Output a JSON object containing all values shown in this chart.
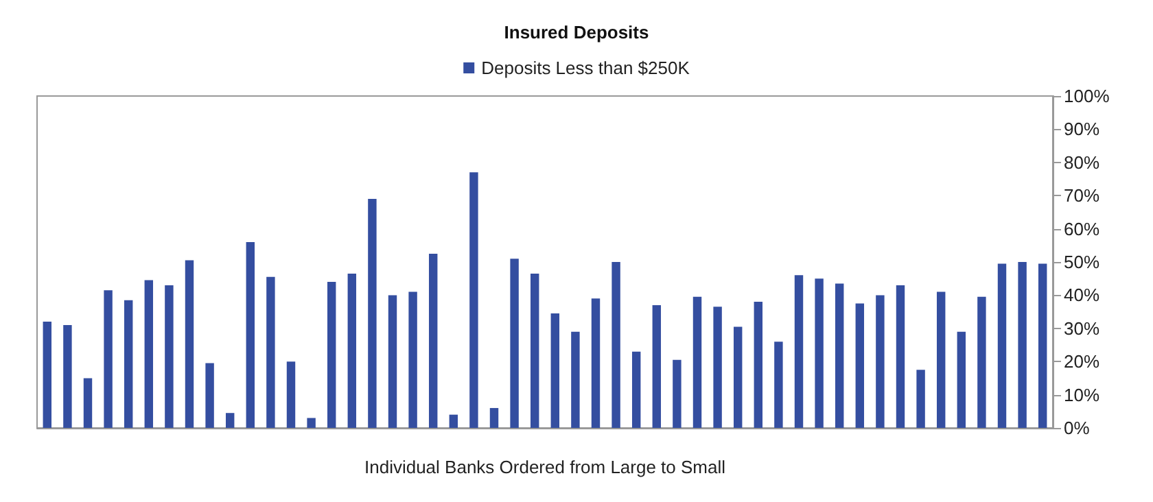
{
  "chart_data": {
    "type": "bar",
    "title": "Insured Deposits",
    "xlabel": "Individual Banks Ordered from Large to Small",
    "categories": [
      null,
      null,
      null,
      null,
      null,
      null,
      null,
      null,
      null,
      null,
      null,
      null,
      null,
      null,
      null,
      null,
      null,
      null,
      null,
      null,
      null,
      null,
      null,
      null,
      null,
      null,
      null,
      null,
      null,
      null,
      null,
      null,
      null,
      null,
      null,
      null,
      null,
      null,
      null,
      null,
      null,
      null,
      null,
      null,
      null,
      null,
      null,
      null,
      null,
      null
    ],
    "series": [
      {
        "name": "Deposits Less than $250K",
        "color": "#344ea0",
        "values": [
          32,
          31,
          15,
          41.5,
          38.5,
          44.5,
          43,
          50.5,
          19.5,
          4.5,
          56,
          45.5,
          20,
          3,
          44,
          46.5,
          69,
          40,
          41,
          52.5,
          4,
          77,
          6,
          51,
          46.5,
          34.5,
          29,
          39,
          50,
          23,
          37,
          20.5,
          39.5,
          36.5,
          30.5,
          38,
          26,
          46,
          45,
          43.5,
          37.5,
          40,
          43,
          17.5,
          41,
          29,
          39.5,
          49.5,
          50,
          49.5
        ]
      }
    ],
    "ylim": [
      0,
      100
    ],
    "yticks": [
      {
        "value": 0,
        "label": "0%"
      },
      {
        "value": 10,
        "label": "10%"
      },
      {
        "value": 20,
        "label": "20%"
      },
      {
        "value": 30,
        "label": "30%"
      },
      {
        "value": 40,
        "label": "40%"
      },
      {
        "value": 50,
        "label": "50%"
      },
      {
        "value": 60,
        "label": "60%"
      },
      {
        "value": 70,
        "label": "70%"
      },
      {
        "value": 80,
        "label": "80%"
      },
      {
        "value": 90,
        "label": "90%"
      },
      {
        "value": 100,
        "label": "100%"
      }
    ],
    "grid": false,
    "legend": "top"
  }
}
